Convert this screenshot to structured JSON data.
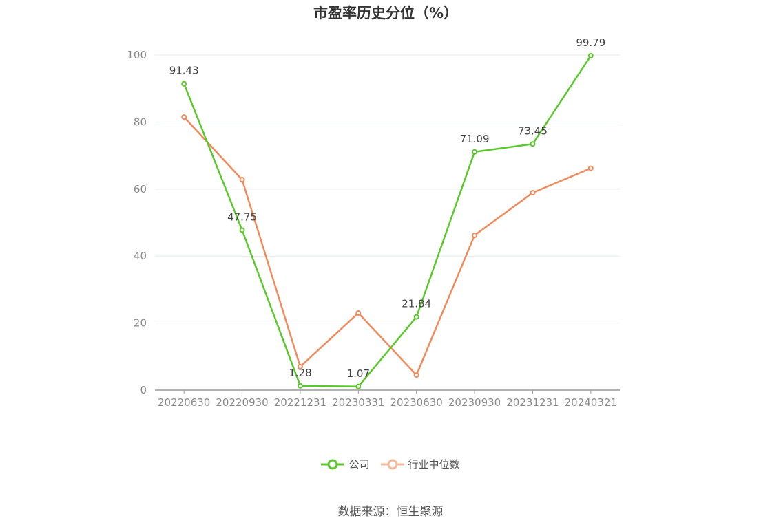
{
  "title": "市盈率历史分位（%）",
  "source": "数据来源：恒生聚源",
  "colors": {
    "company": "#5ac82a",
    "industry": "#f08a5a",
    "grid": "#e6e8f0",
    "axis": "#999999"
  },
  "legend": {
    "company_label": "公司",
    "industry_label": "行业中位数"
  },
  "chart_data": {
    "type": "line",
    "title": "市盈率历史分位（%）",
    "categories": [
      "20220630",
      "20220930",
      "20221231",
      "20230331",
      "20230630",
      "20230930",
      "20231231",
      "20240321"
    ],
    "ylim": [
      0,
      100
    ],
    "yticks": [
      0,
      20,
      40,
      60,
      80,
      100
    ],
    "grid": true,
    "legend_position": "bottom",
    "series": [
      {
        "name": "公司",
        "values": [
          91.43,
          47.75,
          1.28,
          1.07,
          21.84,
          71.09,
          73.45,
          99.79
        ],
        "labels": [
          "91.43",
          "47.75",
          "1.28",
          "1.07",
          "21.84",
          "71.09",
          "73.45",
          "99.79"
        ]
      },
      {
        "name": "行业中位数",
        "values": [
          81.5,
          62.8,
          7.0,
          23.0,
          4.5,
          46.2,
          58.9,
          66.2
        ]
      }
    ]
  }
}
